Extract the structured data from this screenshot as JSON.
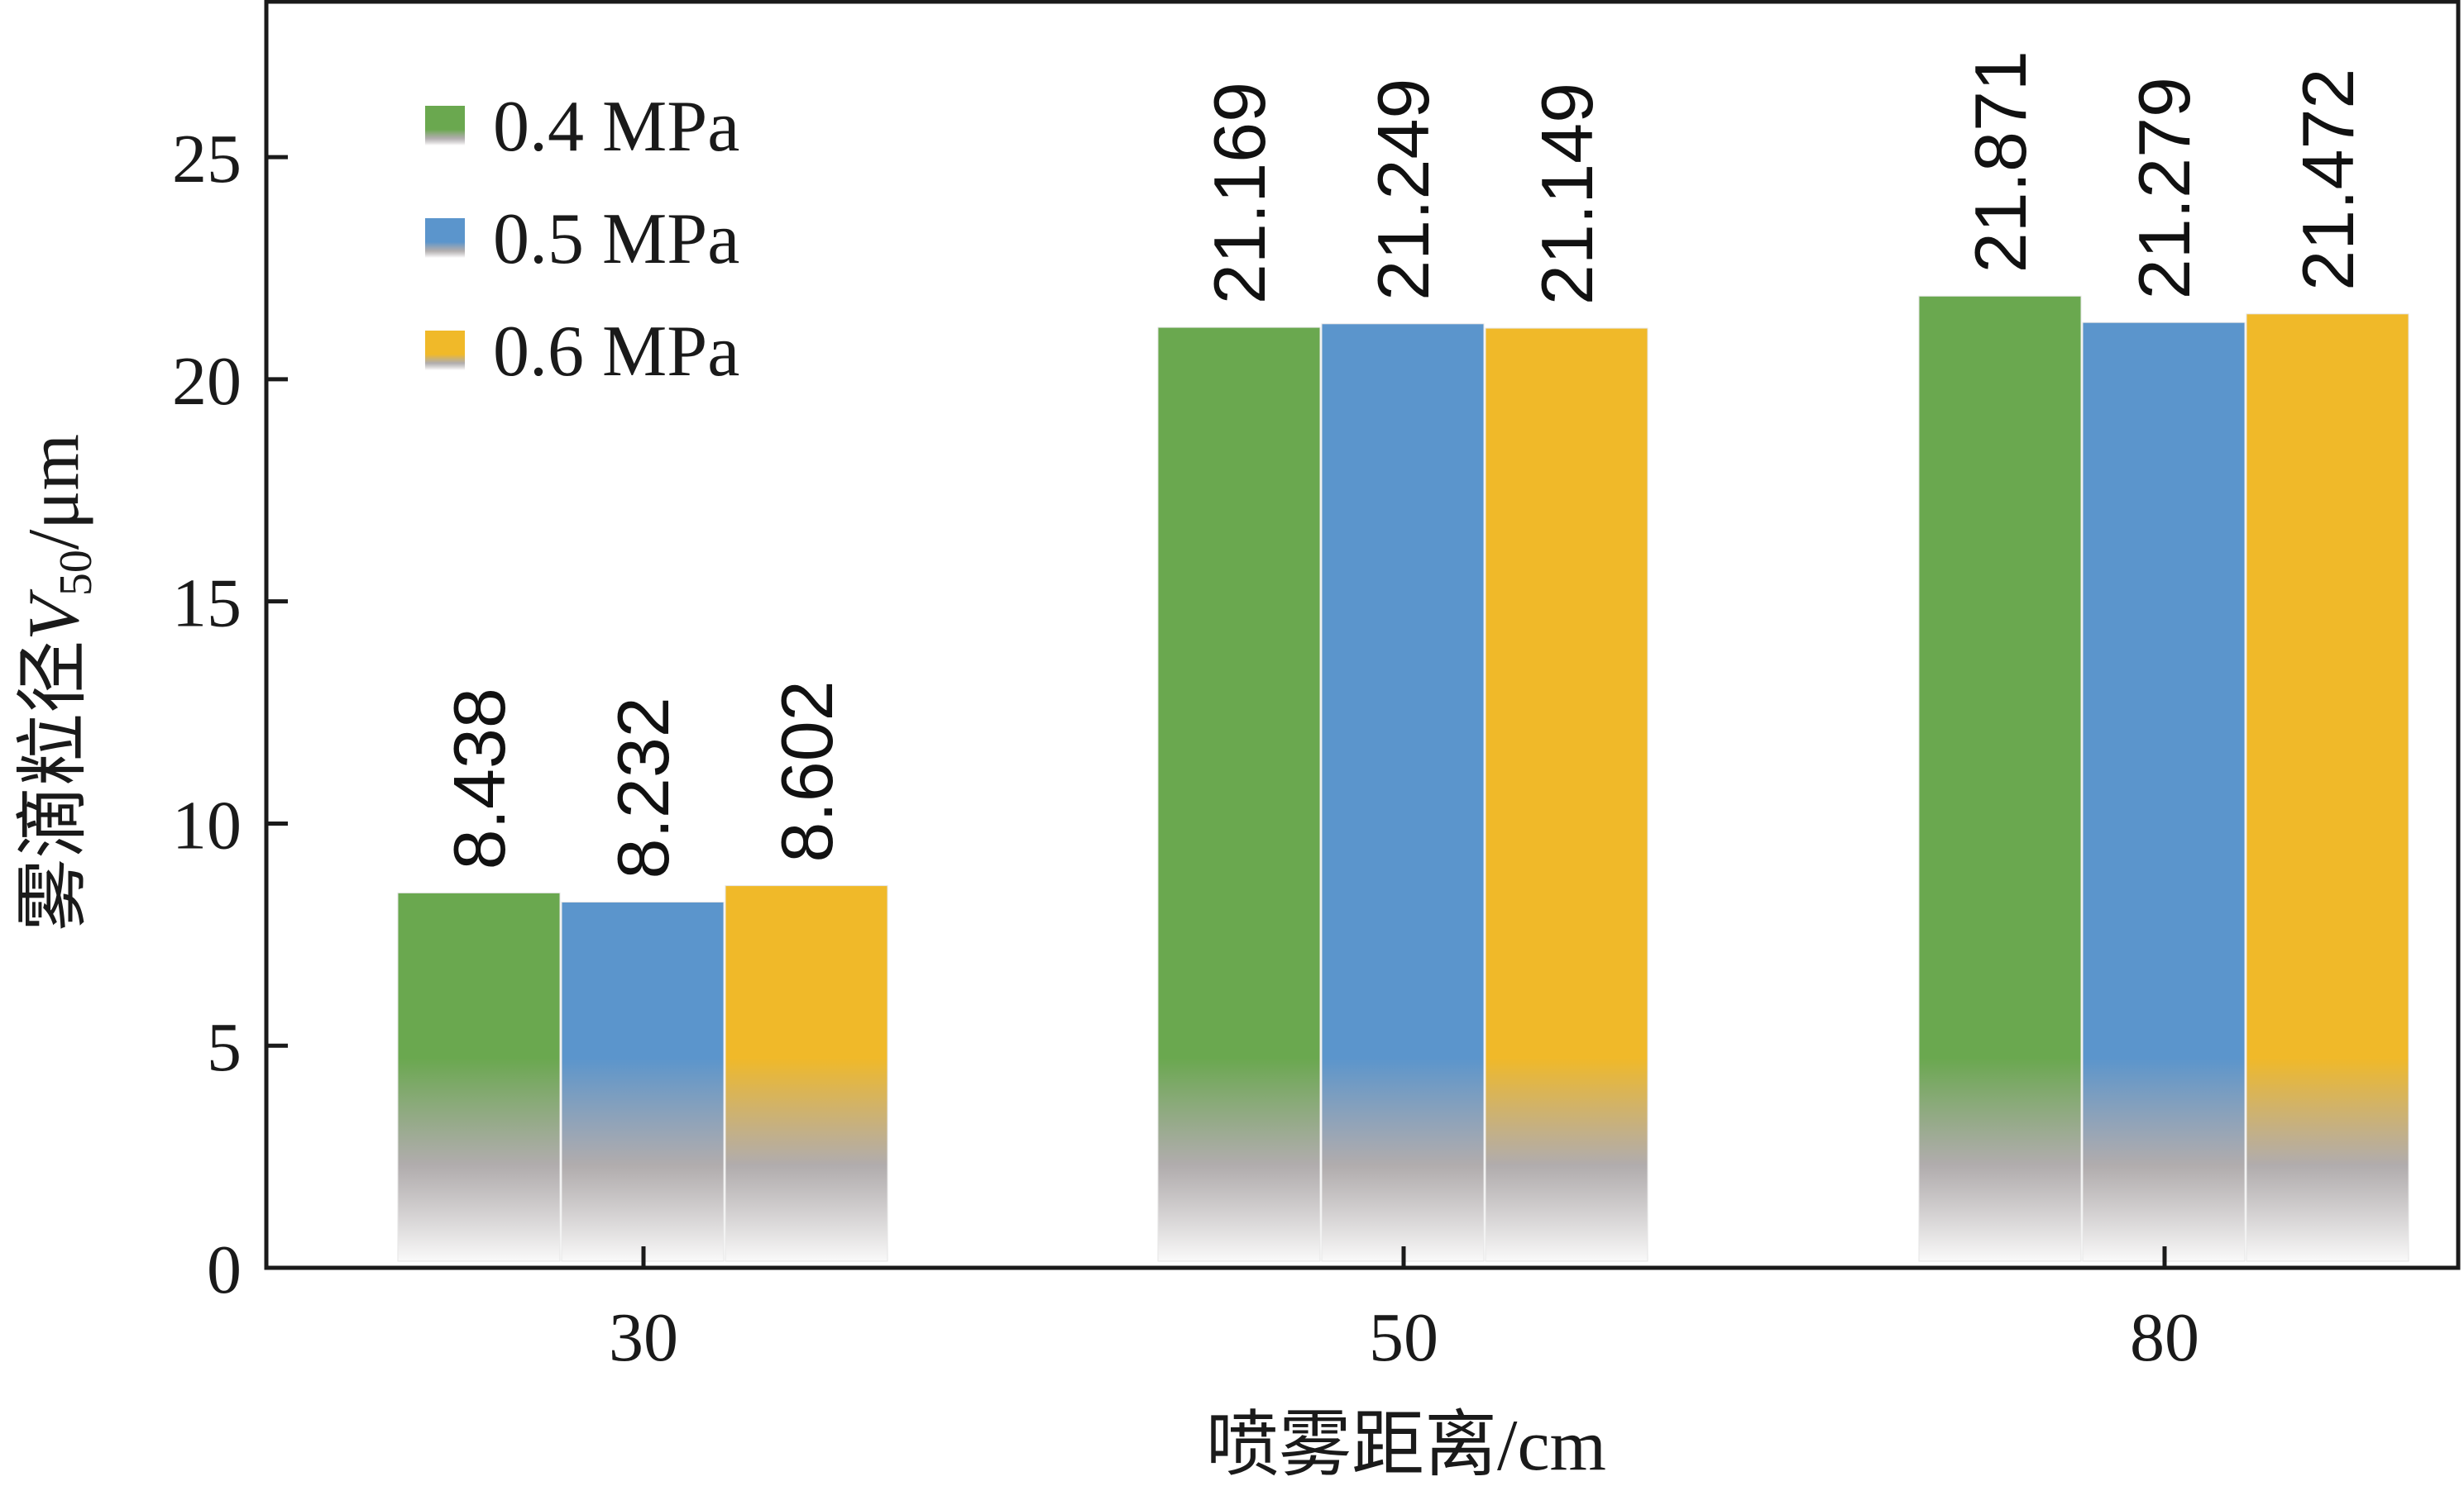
{
  "chart_data": {
    "type": "bar",
    "categories": [
      "30",
      "50",
      "80"
    ],
    "series": [
      {
        "name": "0.4 MPa",
        "values": [
          8.438,
          21.169,
          21.871
        ],
        "color": "#6aa84f"
      },
      {
        "name": "0.5 MPa",
        "values": [
          8.232,
          21.249,
          21.279
        ],
        "color": "#5b95cc"
      },
      {
        "name": "0.6 MPa",
        "values": [
          8.602,
          21.149,
          21.472
        ],
        "color": "#f0b929"
      }
    ],
    "data_labels": [
      [
        "8.438",
        "8.232",
        "8.602"
      ],
      [
        "21.169",
        "21.249",
        "21.149"
      ],
      [
        "21.871",
        "21.279",
        "21.472"
      ]
    ],
    "y_ticks": [
      "0",
      "5",
      "10",
      "15",
      "20",
      "25"
    ],
    "ylim": [
      0,
      28.5
    ],
    "xlabel": "喷雾距离/cm",
    "ylabel": {
      "prefix": "雾滴粒径",
      "symbol": "V",
      "subscript": "50",
      "suffix": "/μm"
    },
    "legend_position": "top-left",
    "grid": false
  }
}
